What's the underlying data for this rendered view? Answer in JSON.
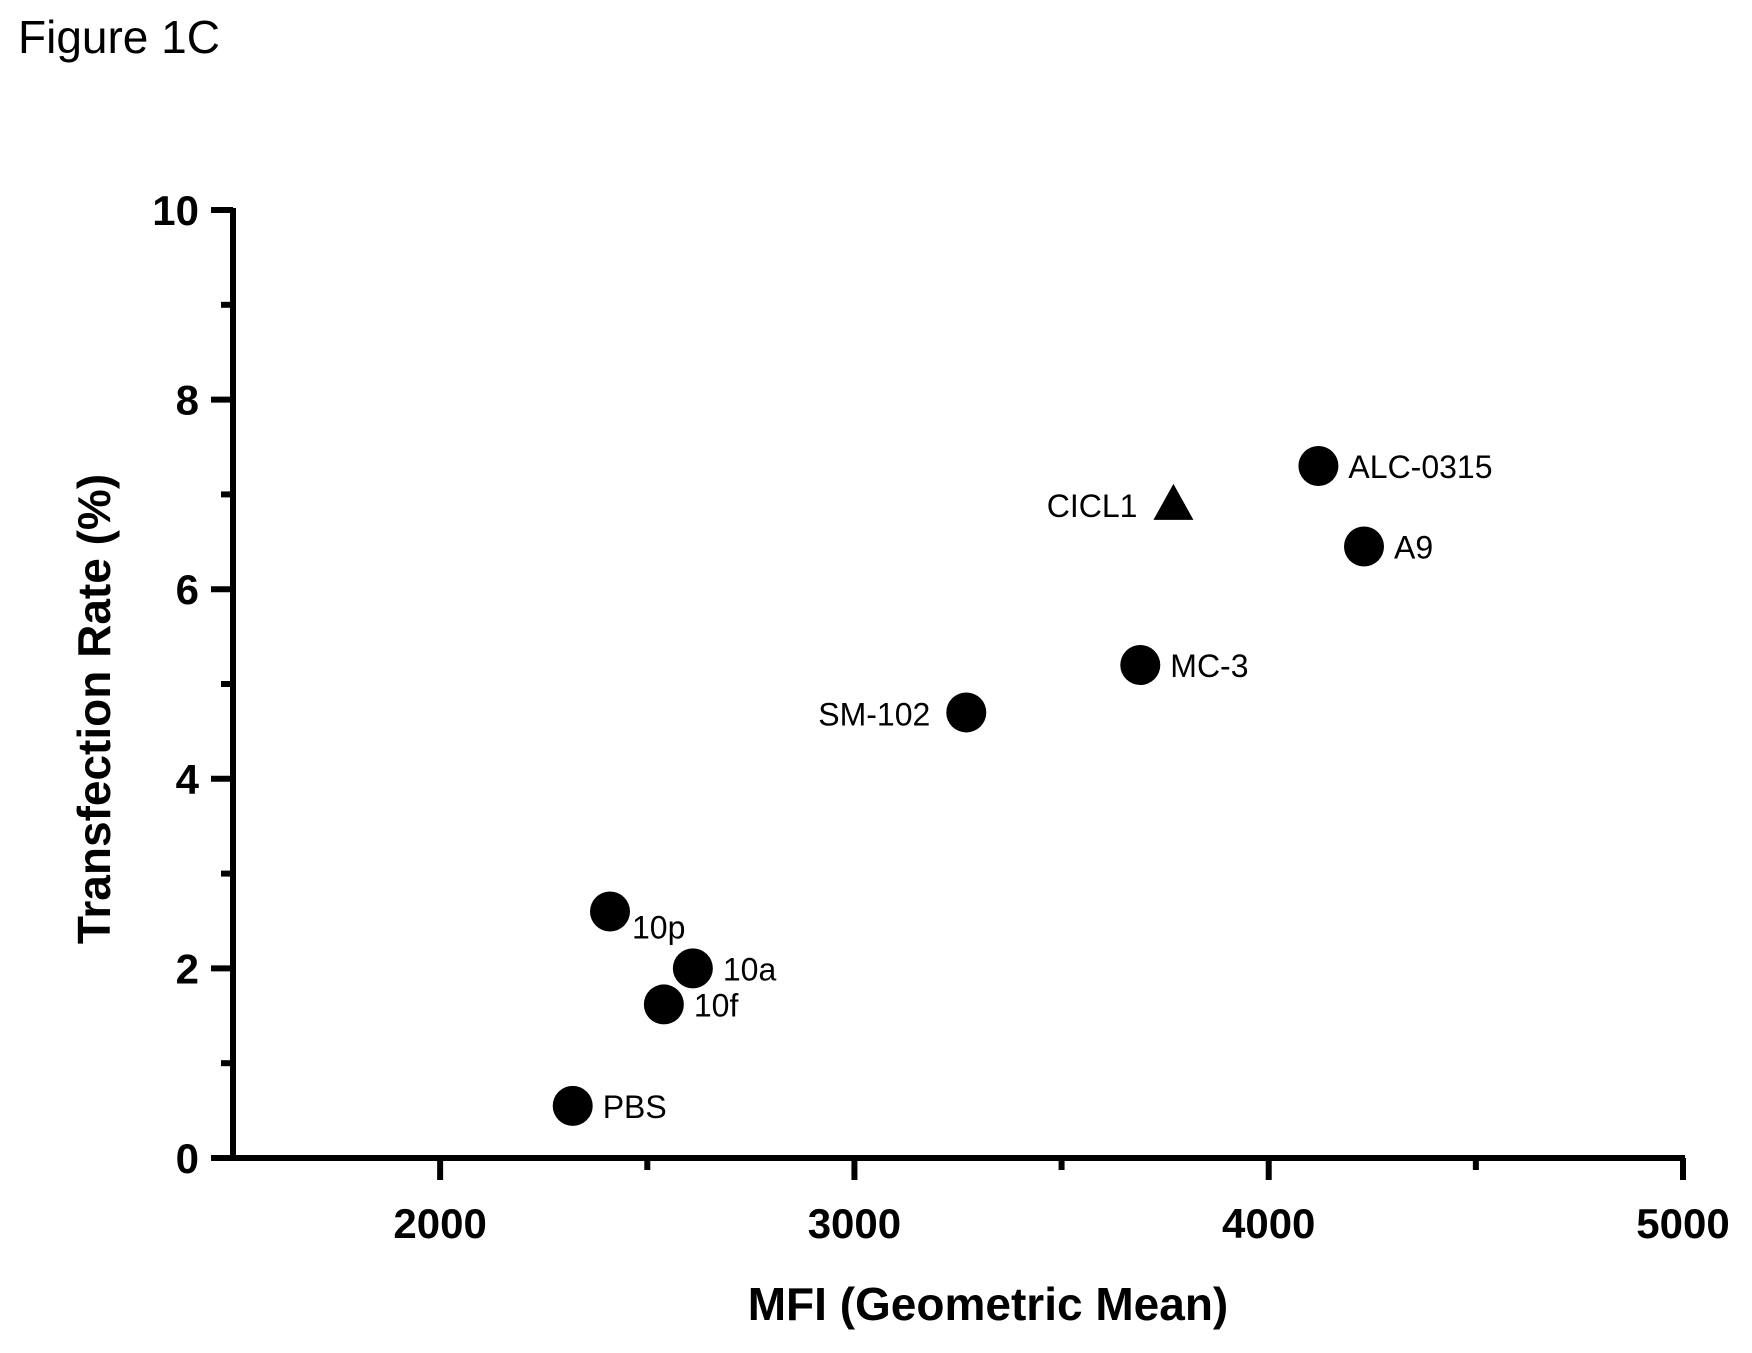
{
  "figure_label": "Figure 1C",
  "chart_data": {
    "type": "scatter",
    "xlabel": "MFI (Geometric Mean)",
    "ylabel": "Transfection Rate (%)",
    "xlim": [
      1500,
      5000
    ],
    "ylim": [
      0,
      10
    ],
    "x_ticks": [
      2000,
      3000,
      4000,
      5000
    ],
    "x_ticks_label": [
      "2000",
      "3000",
      "4000",
      "5000"
    ],
    "y_ticks": [
      0,
      2,
      4,
      6,
      8,
      10
    ],
    "y_ticks_label": [
      "0",
      "2",
      "4",
      "6",
      "8",
      "10"
    ],
    "grid": false,
    "points": [
      {
        "label": "PBS",
        "x": 2320,
        "y": 0.55,
        "marker": "circle",
        "label_side": "right"
      },
      {
        "label": "10p",
        "x": 2410,
        "y": 2.6,
        "marker": "circle",
        "label_side": "right-below"
      },
      {
        "label": "10a",
        "x": 2610,
        "y": 2.0,
        "marker": "circle",
        "label_side": "right"
      },
      {
        "label": "10f",
        "x": 2540,
        "y": 1.62,
        "marker": "circle",
        "label_side": "right"
      },
      {
        "label": "SM-102",
        "x": 3270,
        "y": 4.7,
        "marker": "circle",
        "label_side": "left"
      },
      {
        "label": "MC-3",
        "x": 3690,
        "y": 5.2,
        "marker": "circle",
        "label_side": "right"
      },
      {
        "label": "CICL1",
        "x": 3770,
        "y": 6.9,
        "marker": "triangle",
        "label_side": "left"
      },
      {
        "label": "ALC-0315",
        "x": 4120,
        "y": 7.3,
        "marker": "circle",
        "label_side": "right"
      },
      {
        "label": "A9",
        "x": 4230,
        "y": 6.45,
        "marker": "circle",
        "label_side": "right"
      }
    ]
  }
}
